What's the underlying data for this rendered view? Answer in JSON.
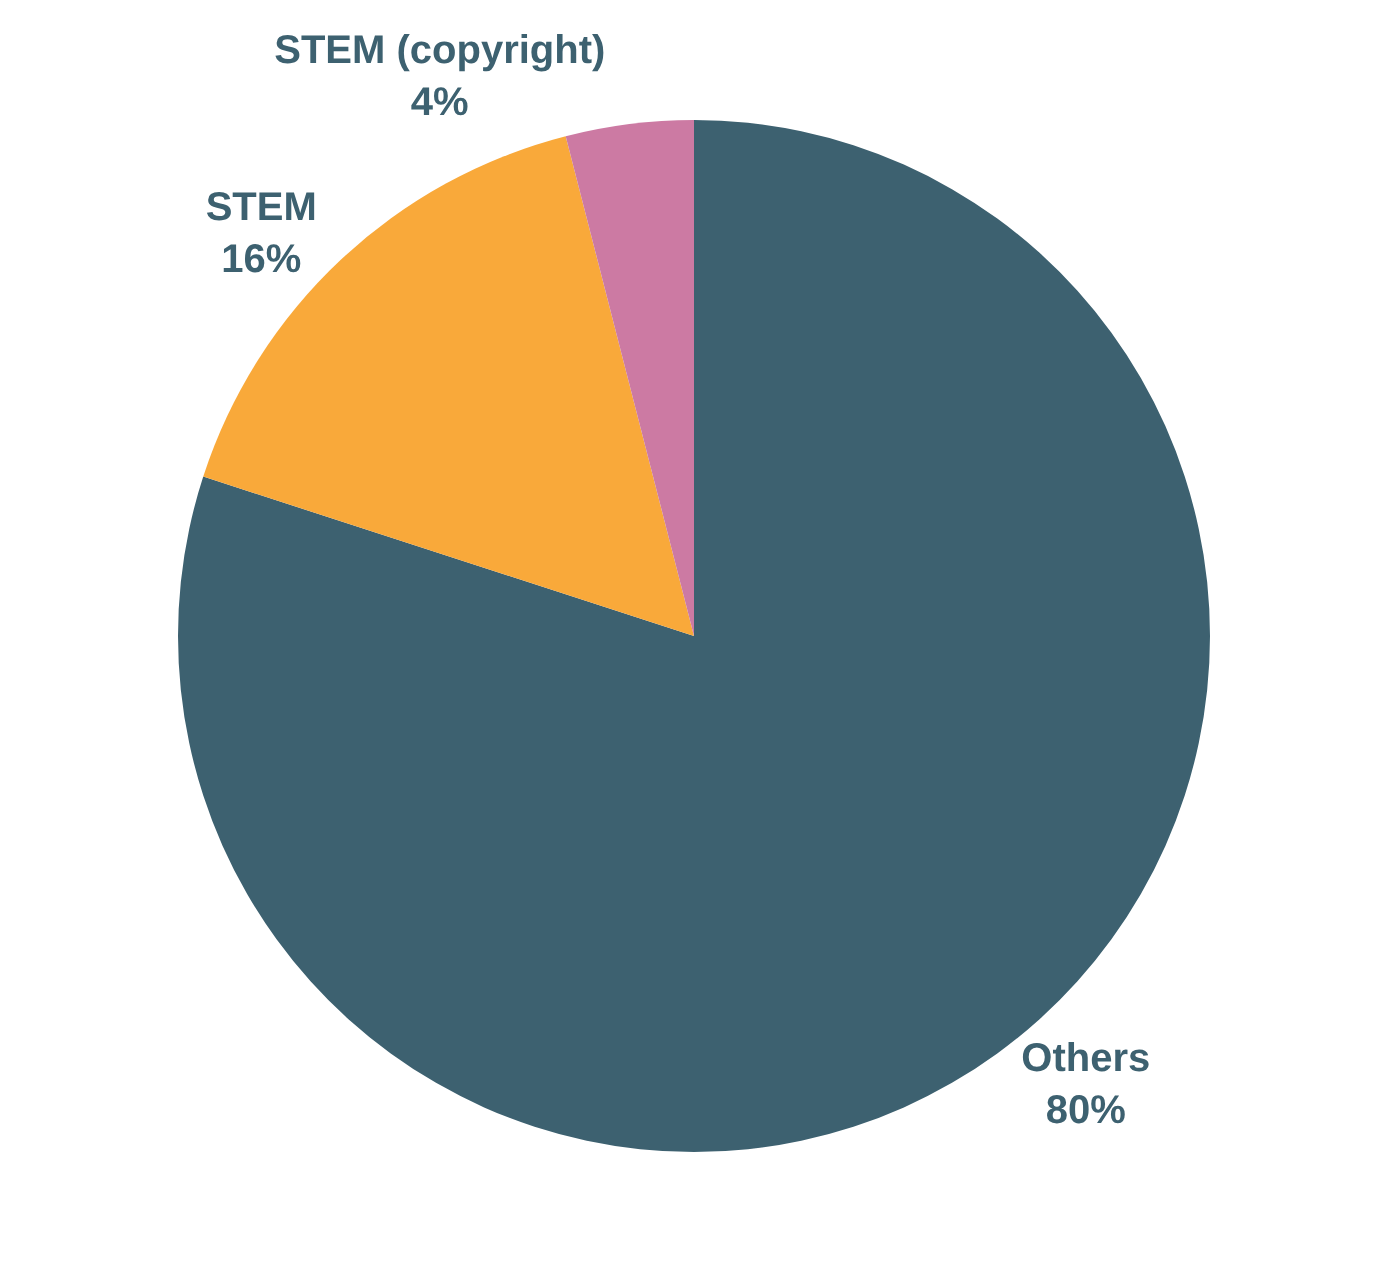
{
  "chart_data": {
    "type": "pie",
    "categories": [
      "Others",
      "STEM",
      "STEM (copyright)"
    ],
    "values": [
      80,
      16,
      4
    ],
    "value_labels": [
      "80%",
      "16%",
      "4%"
    ],
    "colors": [
      "#3d6170",
      "#f9a93a",
      "#cc7aa3"
    ],
    "legend": false
  }
}
